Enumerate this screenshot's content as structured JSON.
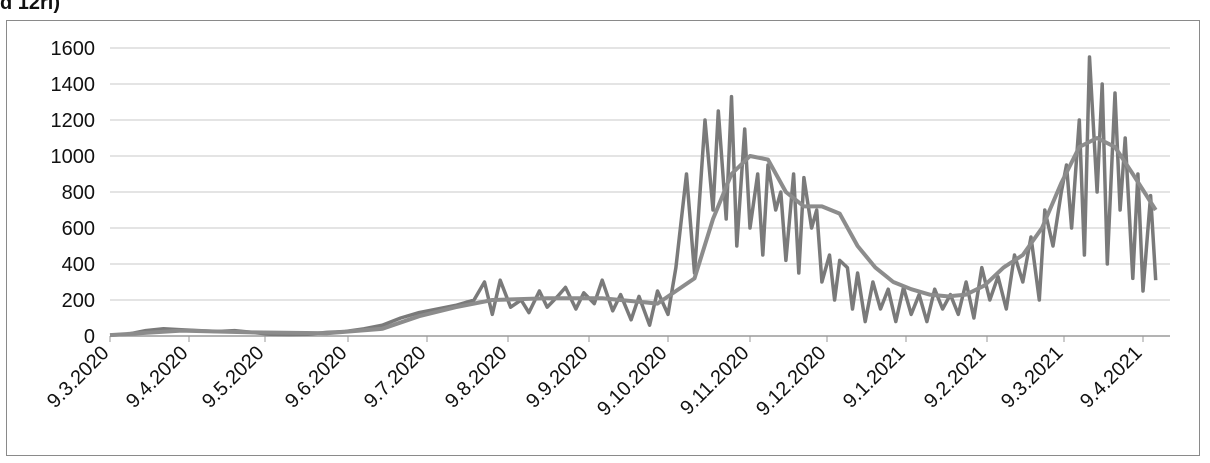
{
  "header": {
    "clipped_text": "d 12ri)"
  },
  "chart_data": {
    "type": "line",
    "title": "",
    "xlabel": "",
    "ylabel": "",
    "ylim": [
      0,
      1600
    ],
    "yticks": [
      0,
      200,
      400,
      600,
      800,
      1000,
      1200,
      1400,
      1600
    ],
    "xticks": [
      "9.3.2020",
      "9.4.2020",
      "9.5.2020",
      "9.6.2020",
      "9.7.2020",
      "9.8.2020",
      "9.9.2020",
      "9.10.2020",
      "9.11.2020",
      "9.12.2020",
      "9.1.2021",
      "9.2.2021",
      "9.3.2021",
      "9.4.2021"
    ],
    "grid": true,
    "legend": "none",
    "colors": {
      "daily": "#7a7a7a",
      "average": "#8c8c8c",
      "grid": "#c8c8c8"
    },
    "series": [
      {
        "values_note": "daily values (week-anchored samples)",
        "x": [
          "2020-03-09",
          "2020-03-16",
          "2020-03-23",
          "2020-03-30",
          "2020-04-06",
          "2020-04-13",
          "2020-04-20",
          "2020-04-27",
          "2020-05-04",
          "2020-05-11",
          "2020-05-18",
          "2020-05-25",
          "2020-06-01",
          "2020-06-08",
          "2020-06-15",
          "2020-06-22",
          "2020-06-29",
          "2020-07-06",
          "2020-07-13",
          "2020-07-20",
          "2020-07-27",
          "2020-07-31",
          "2020-08-03",
          "2020-08-06",
          "2020-08-10",
          "2020-08-14",
          "2020-08-17",
          "2020-08-21",
          "2020-08-24",
          "2020-08-28",
          "2020-08-31",
          "2020-09-04",
          "2020-09-07",
          "2020-09-11",
          "2020-09-14",
          "2020-09-18",
          "2020-09-21",
          "2020-09-25",
          "2020-09-28",
          "2020-10-02",
          "2020-10-05",
          "2020-10-09",
          "2020-10-12",
          "2020-10-16",
          "2020-10-19",
          "2020-10-23",
          "2020-10-26",
          "2020-10-28",
          "2020-10-31",
          "2020-11-02",
          "2020-11-04",
          "2020-11-07",
          "2020-11-09",
          "2020-11-12",
          "2020-11-14",
          "2020-11-16",
          "2020-11-19",
          "2020-11-21",
          "2020-11-23",
          "2020-11-26",
          "2020-11-28",
          "2020-11-30",
          "2020-12-03",
          "2020-12-05",
          "2020-12-07",
          "2020-12-10",
          "2020-12-12",
          "2020-12-14",
          "2020-12-17",
          "2020-12-19",
          "2020-12-21",
          "2020-12-24",
          "2020-12-27",
          "2020-12-30",
          "2021-01-02",
          "2021-01-05",
          "2021-01-08",
          "2021-01-11",
          "2021-01-14",
          "2021-01-17",
          "2021-01-20",
          "2021-01-23",
          "2021-01-26",
          "2021-01-29",
          "2021-02-01",
          "2021-02-04",
          "2021-02-07",
          "2021-02-10",
          "2021-02-13",
          "2021-02-16",
          "2021-02-19",
          "2021-02-22",
          "2021-02-25",
          "2021-02-28",
          "2021-03-02",
          "2021-03-05",
          "2021-03-08",
          "2021-03-10",
          "2021-03-12",
          "2021-03-15",
          "2021-03-17",
          "2021-03-19",
          "2021-03-22",
          "2021-03-24",
          "2021-03-26",
          "2021-03-29",
          "2021-03-31",
          "2021-04-02",
          "2021-04-05",
          "2021-04-07",
          "2021-04-09",
          "2021-04-12",
          "2021-04-14"
        ],
        "values": [
          5,
          10,
          30,
          40,
          35,
          30,
          25,
          30,
          20,
          10,
          8,
          10,
          20,
          25,
          40,
          60,
          100,
          130,
          150,
          170,
          200,
          300,
          120,
          310,
          160,
          200,
          130,
          250,
          160,
          220,
          270,
          150,
          240,
          180,
          310,
          140,
          230,
          90,
          220,
          60,
          250,
          120,
          380,
          900,
          350,
          1200,
          700,
          1250,
          650,
          1330,
          500,
          1150,
          600,
          900,
          450,
          950,
          700,
          800,
          420,
          900,
          350,
          880,
          600,
          700,
          300,
          450,
          200,
          420,
          380,
          150,
          350,
          80,
          300,
          150,
          260,
          80,
          270,
          120,
          230,
          80,
          260,
          150,
          230,
          120,
          300,
          100,
          380,
          200,
          330,
          150,
          450,
          300,
          550,
          200,
          700,
          500,
          800,
          950,
          600,
          1200,
          450,
          1550,
          800,
          1400,
          400,
          1350,
          700,
          1100,
          320,
          900,
          250,
          780,
          310
        ]
      },
      {
        "values_note": "moving average",
        "x": [
          "2020-03-09",
          "2020-04-06",
          "2020-05-04",
          "2020-06-01",
          "2020-06-22",
          "2020-07-06",
          "2020-07-20",
          "2020-08-03",
          "2020-08-24",
          "2020-09-14",
          "2020-10-05",
          "2020-10-19",
          "2020-10-26",
          "2020-11-02",
          "2020-11-09",
          "2020-11-16",
          "2020-11-23",
          "2020-11-30",
          "2020-12-07",
          "2020-12-14",
          "2020-12-21",
          "2020-12-28",
          "2021-01-04",
          "2021-01-11",
          "2021-01-18",
          "2021-01-25",
          "2021-02-01",
          "2021-02-08",
          "2021-02-15",
          "2021-02-22",
          "2021-03-01",
          "2021-03-08",
          "2021-03-15",
          "2021-03-22",
          "2021-03-29",
          "2021-04-05",
          "2021-04-14"
        ],
        "values": [
          5,
          30,
          20,
          15,
          40,
          110,
          160,
          200,
          210,
          210,
          180,
          320,
          650,
          900,
          1000,
          980,
          800,
          720,
          720,
          680,
          500,
          380,
          300,
          260,
          230,
          220,
          230,
          280,
          380,
          450,
          600,
          850,
          1050,
          1100,
          1050,
          900,
          700
        ]
      }
    ]
  }
}
